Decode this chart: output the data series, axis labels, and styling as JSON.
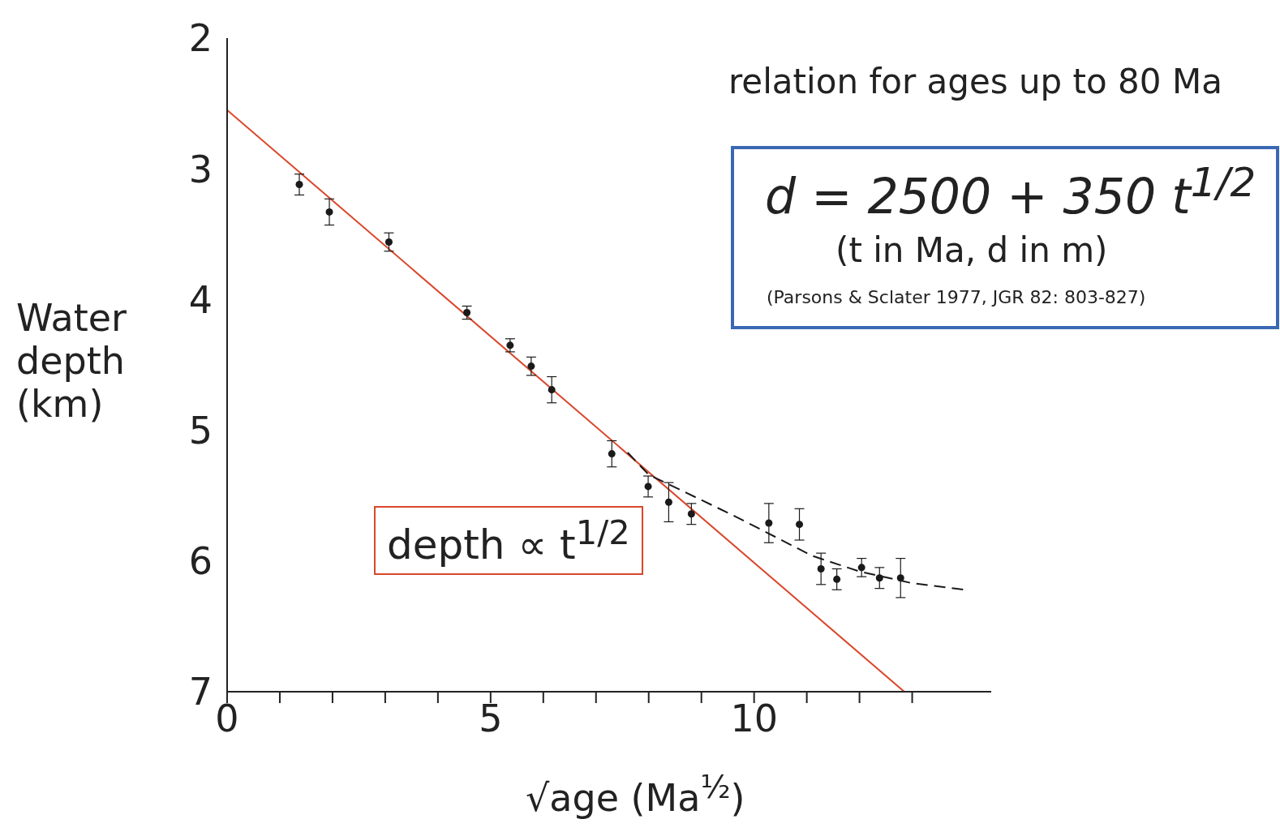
{
  "chart_data": {
    "type": "scatter",
    "xlabel": "√age (Ma$^{½}$)",
    "ylabel": "Water depth (km)",
    "xlim": [
      0,
      14.5
    ],
    "ylim": [
      7,
      2
    ],
    "xticks": [
      0,
      {
        "value": 1,
        "label": null
      },
      {
        "value": 2,
        "label": null
      },
      {
        "value": 3,
        "label": null
      },
      {
        "value": 4,
        "label": null
      },
      5,
      {
        "value": 6,
        "label": null
      },
      {
        "value": 7,
        "label": null
      },
      {
        "value": 8,
        "label": null
      },
      {
        "value": 9,
        "label": null
      },
      10,
      {
        "value": 11,
        "label": null
      },
      {
        "value": 12,
        "label": null
      },
      {
        "value": 13,
        "label": null
      }
    ],
    "yticks": [
      2,
      3,
      4,
      5,
      6,
      7
    ],
    "grid": false,
    "legend": false,
    "series": [
      {
        "type": "line",
        "color": "#d9472b",
        "marker": "none",
        "line_style": "solid",
        "x": [
          0,
          12.85
        ],
        "values": [
          2.55,
          7.0
        ]
      },
      {
        "type": "line",
        "color": "#1a1a1a",
        "marker": "none",
        "line_style": "dashed",
        "x": [
          7.6,
          8.0,
          9.6,
          11.1,
          12.0,
          13.0,
          14.0
        ],
        "values": [
          5.17,
          5.34,
          5.65,
          5.96,
          6.08,
          6.17,
          6.22
        ]
      },
      {
        "color": "#1a1a1a",
        "marker": "circle",
        "x": [
          1.37,
          1.94,
          3.07,
          4.55,
          5.37,
          5.77,
          6.16,
          7.3,
          7.99,
          8.38,
          8.81,
          10.28,
          10.86,
          11.27,
          11.57,
          12.04,
          12.38,
          12.78
        ],
        "values": [
          3.12,
          3.33,
          3.56,
          4.1,
          4.35,
          4.51,
          4.69,
          5.18,
          5.43,
          5.55,
          5.64,
          5.71,
          5.72,
          6.06,
          6.14,
          6.05,
          6.13,
          6.13
        ],
        "errors": [
          0.08,
          0.1,
          0.07,
          0.05,
          0.05,
          0.07,
          0.1,
          0.1,
          0.08,
          0.15,
          0.08,
          0.15,
          0.12,
          0.12,
          0.08,
          0.07,
          0.08,
          0.15
        ]
      }
    ],
    "annotations": [
      "relation for ages up to 80 Ma",
      "d = 2500 + 350 t$^{1/2}$",
      "(t in Ma, d in m)",
      "(Parsons & Sclater 1977, JGR 82: 803-827)",
      "depth ∝ t$^{1/2}$"
    ]
  }
}
